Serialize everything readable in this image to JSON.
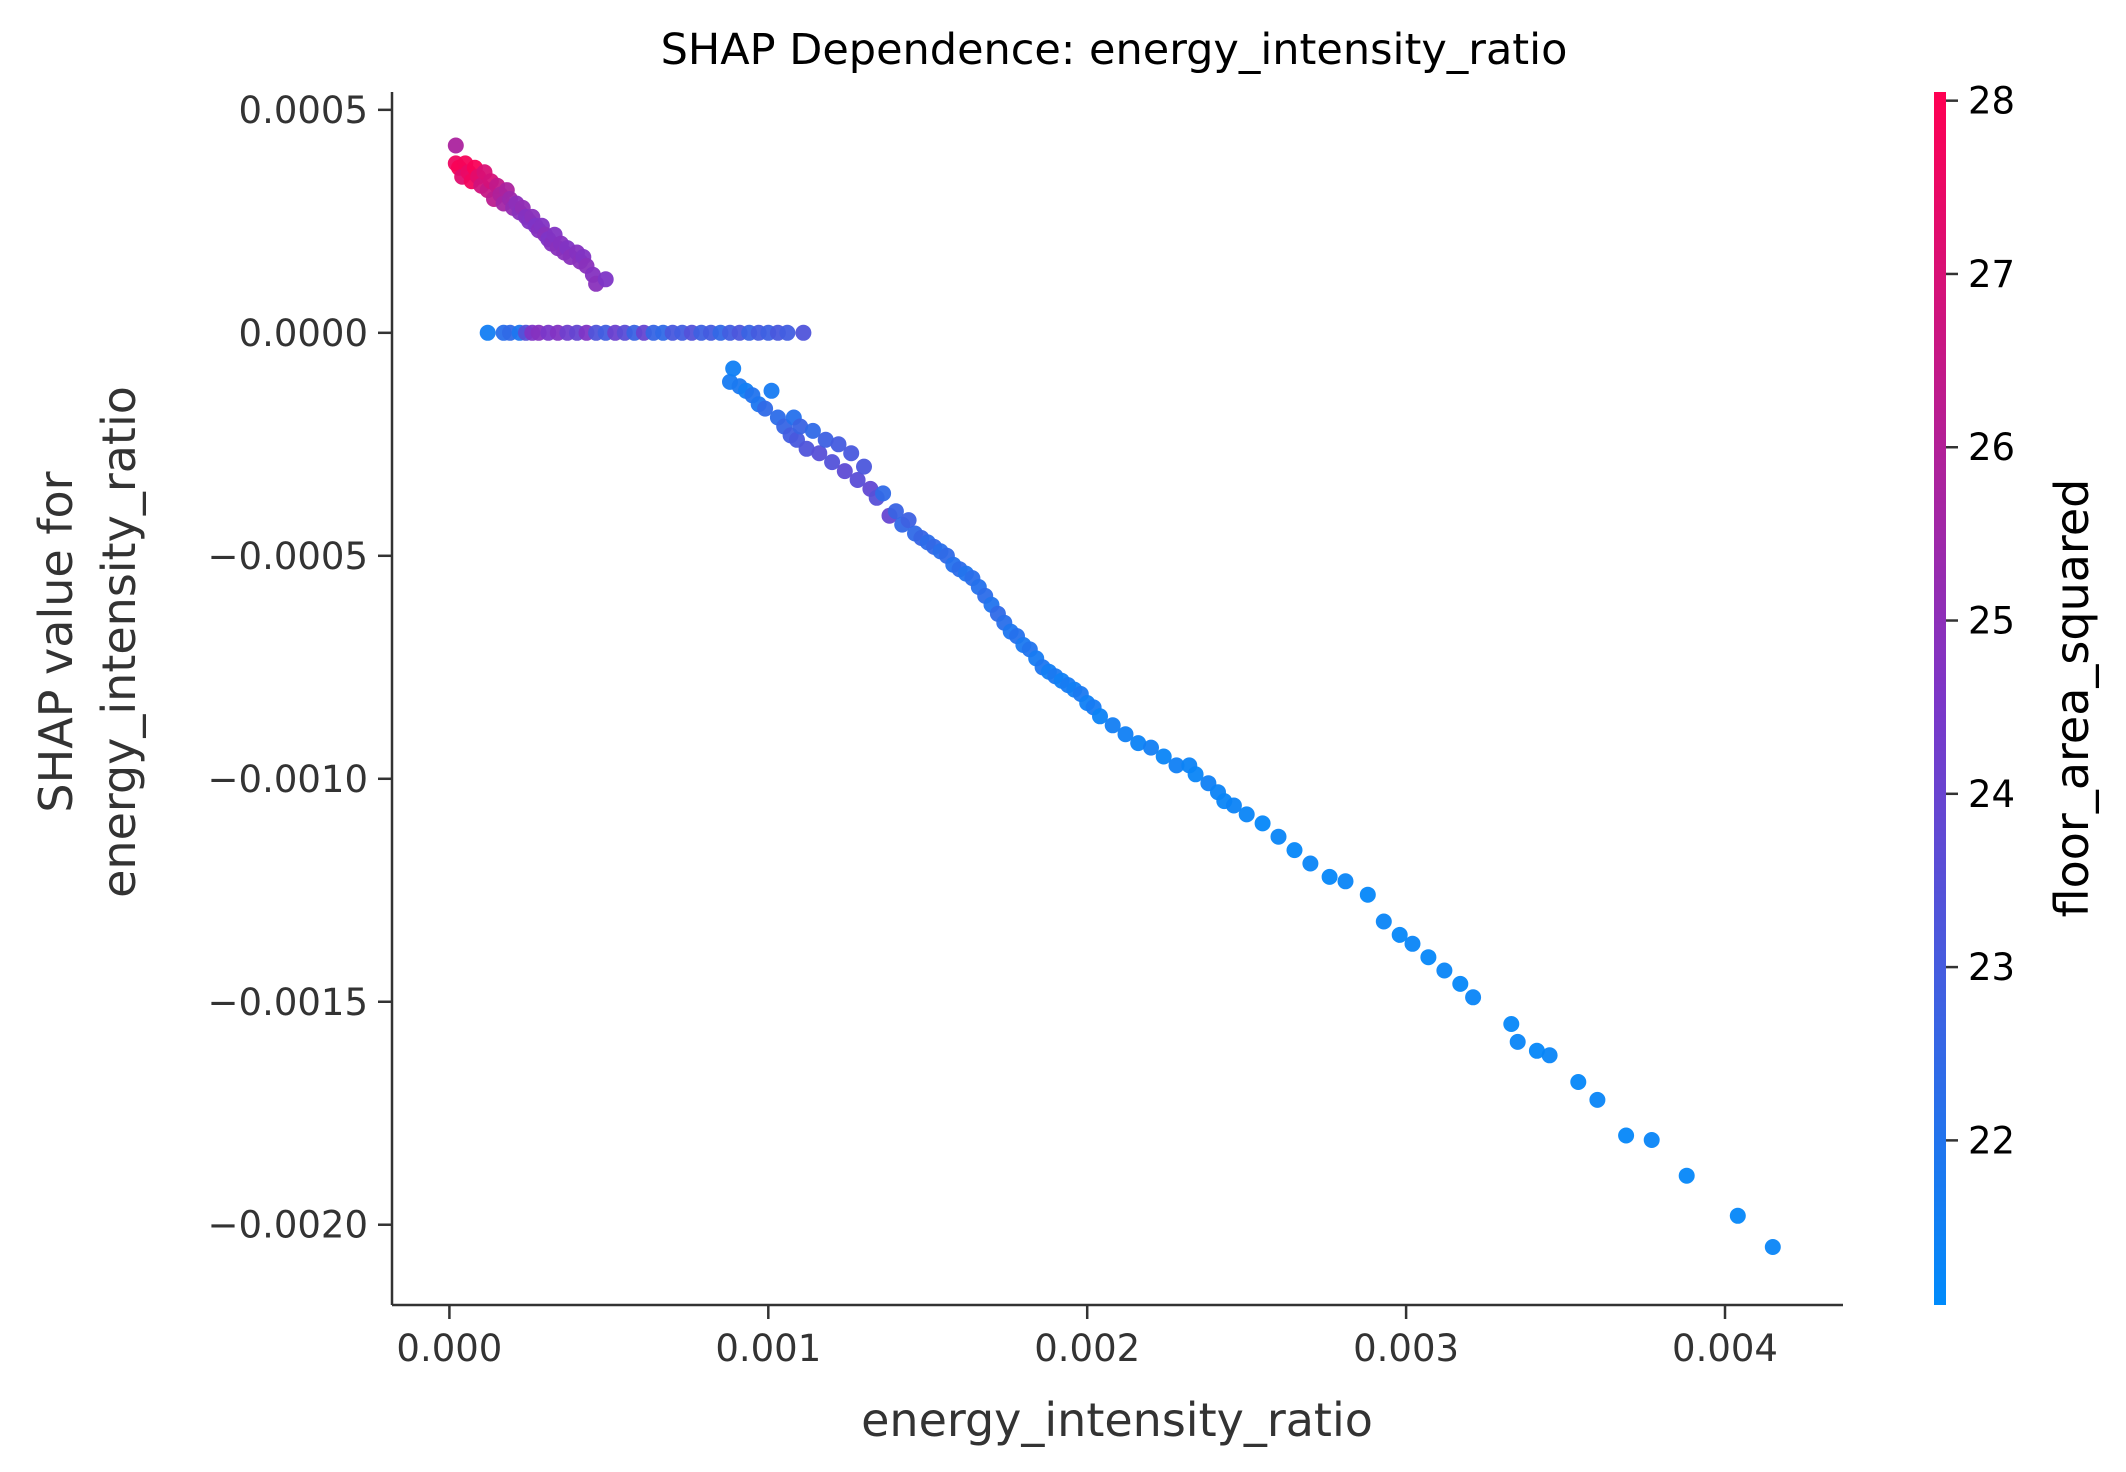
{
  "chart_data": {
    "type": "scatter",
    "title": "SHAP Dependence: energy_intensity_ratio",
    "xlabel": "energy_intensity_ratio",
    "ylabel_lines": [
      "SHAP value for",
      "energy_intensity_ratio"
    ],
    "xlim": [
      -0.00018,
      0.00437
    ],
    "ylim": [
      -0.00218,
      0.00054
    ],
    "x_ticks": [
      {
        "value": 0.0,
        "label": "0.000"
      },
      {
        "value": 0.001,
        "label": "0.001"
      },
      {
        "value": 0.002,
        "label": "0.002"
      },
      {
        "value": 0.003,
        "label": "0.003"
      },
      {
        "value": 0.004,
        "label": "0.004"
      }
    ],
    "y_ticks": [
      {
        "value": 0.0005,
        "label": "0.0005"
      },
      {
        "value": 0.0,
        "label": "0.0000"
      },
      {
        "value": -0.0005,
        "label": "−0.0005"
      },
      {
        "value": -0.001,
        "label": "−0.0010"
      },
      {
        "value": -0.0015,
        "label": "−0.0015"
      },
      {
        "value": -0.002,
        "label": "−0.0020"
      }
    ],
    "colorbar": {
      "label": "floor_area_squared",
      "range": [
        21.05,
        28.05
      ],
      "low_color": "#008bfb",
      "mid_color": "#7c36c8",
      "high_color": "#ff0052",
      "ticks": [
        {
          "value": 22,
          "label": "22"
        },
        {
          "value": 23,
          "label": "23"
        },
        {
          "value": 24,
          "label": "24"
        },
        {
          "value": 25,
          "label": "25"
        },
        {
          "value": 26,
          "label": "26"
        },
        {
          "value": 27,
          "label": "27"
        },
        {
          "value": 28,
          "label": "28"
        }
      ]
    },
    "points": [
      [
        2e-05,
        0.00042,
        25.8
      ],
      [
        2e-05,
        0.00038,
        27.6
      ],
      [
        3e-05,
        0.00037,
        27.9
      ],
      [
        4e-05,
        0.00035,
        27.2
      ],
      [
        5e-05,
        0.00038,
        27.8
      ],
      [
        6e-05,
        0.00036,
        27.5
      ],
      [
        7e-05,
        0.00034,
        27.7
      ],
      [
        8e-05,
        0.00037,
        27.9
      ],
      [
        9e-05,
        0.00035,
        27.3
      ],
      [
        0.0001,
        0.00033,
        26.8
      ],
      [
        0.00011,
        0.00036,
        27.0
      ],
      [
        0.00012,
        0.00032,
        26.5
      ],
      [
        0.00013,
        0.00034,
        26.9
      ],
      [
        0.00014,
        0.0003,
        26.2
      ],
      [
        0.00015,
        0.00033,
        26.4
      ],
      [
        0.00016,
        0.00031,
        25.9
      ],
      [
        0.00017,
        0.00029,
        25.6
      ],
      [
        0.00018,
        0.00032,
        25.8
      ],
      [
        0.00019,
        0.0003,
        25.4
      ],
      [
        0.0002,
        0.00028,
        25.2
      ],
      [
        0.00021,
        0.00029,
        25.0
      ],
      [
        0.00022,
        0.00027,
        24.9
      ],
      [
        0.00023,
        0.00028,
        25.1
      ],
      [
        0.00024,
        0.00026,
        24.8
      ],
      [
        0.00025,
        0.00025,
        24.7
      ],
      [
        0.00026,
        0.00026,
        24.9
      ],
      [
        0.00027,
        0.00024,
        24.6
      ],
      [
        0.00028,
        0.00023,
        24.8
      ],
      [
        0.00029,
        0.00024,
        24.7
      ],
      [
        0.0003,
        0.00022,
        24.9
      ],
      [
        0.00031,
        0.00021,
        24.6
      ],
      [
        0.00032,
        0.0002,
        24.8
      ],
      [
        0.00033,
        0.00022,
        24.7
      ],
      [
        0.00034,
        0.00019,
        24.9
      ],
      [
        0.00035,
        0.0002,
        24.8
      ],
      [
        0.00036,
        0.00018,
        24.9
      ],
      [
        0.00037,
        0.00019,
        24.7
      ],
      [
        0.00038,
        0.00017,
        24.9
      ],
      [
        0.0004,
        0.00018,
        24.8
      ],
      [
        0.00041,
        0.00016,
        24.9
      ],
      [
        0.00042,
        0.00017,
        24.7
      ],
      [
        0.00043,
        0.00015,
        24.9
      ],
      [
        0.00045,
        0.00013,
        24.8
      ],
      [
        0.00046,
        0.00011,
        24.9
      ],
      [
        0.00049,
        0.00012,
        24.6
      ],
      [
        0.00012,
        0.0,
        21.6
      ],
      [
        0.00017,
        0.0,
        22.2
      ],
      [
        0.00019,
        0.0,
        22.4
      ],
      [
        0.00022,
        0.0,
        21.9
      ],
      [
        0.00024,
        0.0,
        23.5
      ],
      [
        0.00026,
        0.0,
        24.6
      ],
      [
        0.00028,
        0.0,
        24.8
      ],
      [
        0.00031,
        0.0,
        24.5
      ],
      [
        0.00034,
        0.0,
        24.7
      ],
      [
        0.00037,
        0.0,
        24.2
      ],
      [
        0.0004,
        0.0,
        23.9
      ],
      [
        0.00043,
        0.0,
        24.6
      ],
      [
        0.00046,
        0.0,
        23.3
      ],
      [
        0.00049,
        0.0,
        22.9
      ],
      [
        0.00052,
        0.0,
        24.1
      ],
      [
        0.00055,
        0.0,
        23.6
      ],
      [
        0.00058,
        0.0,
        22.7
      ],
      [
        0.00061,
        0.0,
        23.9
      ],
      [
        0.00064,
        0.0,
        22.6
      ],
      [
        0.00067,
        0.0,
        22.4
      ],
      [
        0.0007,
        0.0,
        23.1
      ],
      [
        0.00073,
        0.0,
        22.9
      ],
      [
        0.00076,
        0.0,
        23.4
      ],
      [
        0.00079,
        0.0,
        22.8
      ],
      [
        0.00082,
        0.0,
        23.0
      ],
      [
        0.00085,
        0.0,
        22.5
      ],
      [
        0.00088,
        0.0,
        22.9
      ],
      [
        0.00091,
        0.0,
        23.2
      ],
      [
        0.00094,
        0.0,
        22.7
      ],
      [
        0.00097,
        0.0,
        23.0
      ],
      [
        0.001,
        0.0,
        22.8
      ],
      [
        0.00103,
        0.0,
        23.1
      ],
      [
        0.00106,
        0.0,
        22.9
      ],
      [
        0.00111,
        0.0,
        23.3
      ],
      [
        0.00088,
        -0.00011,
        21.7
      ],
      [
        0.00089,
        -8e-05,
        21.5
      ],
      [
        0.00091,
        -0.00012,
        21.8
      ],
      [
        0.00093,
        -0.00013,
        21.6
      ],
      [
        0.00095,
        -0.00014,
        22.0
      ],
      [
        0.00097,
        -0.00016,
        21.9
      ],
      [
        0.00099,
        -0.00017,
        22.4
      ],
      [
        0.00101,
        -0.00013,
        21.7
      ],
      [
        0.00103,
        -0.00019,
        22.3
      ],
      [
        0.00105,
        -0.00021,
        22.6
      ],
      [
        0.00107,
        -0.00023,
        22.9
      ],
      [
        0.00108,
        -0.00019,
        22.1
      ],
      [
        0.00109,
        -0.00024,
        23.1
      ],
      [
        0.0011,
        -0.00021,
        22.7
      ],
      [
        0.00112,
        -0.00026,
        23.3
      ],
      [
        0.00114,
        -0.00022,
        22.4
      ],
      [
        0.00116,
        -0.00027,
        23.5
      ],
      [
        0.00118,
        -0.00024,
        22.8
      ],
      [
        0.0012,
        -0.00029,
        23.4
      ],
      [
        0.00122,
        -0.00025,
        23.0
      ],
      [
        0.00124,
        -0.00031,
        23.7
      ],
      [
        0.00126,
        -0.00027,
        23.1
      ],
      [
        0.00128,
        -0.00033,
        23.6
      ],
      [
        0.0013,
        -0.0003,
        23.2
      ],
      [
        0.00132,
        -0.00035,
        23.8
      ],
      [
        0.00134,
        -0.00037,
        23.5
      ],
      [
        0.00136,
        -0.00036,
        22.4
      ],
      [
        0.00138,
        -0.00041,
        23.9
      ],
      [
        0.0014,
        -0.0004,
        22.7
      ],
      [
        0.00142,
        -0.00043,
        22.5
      ],
      [
        0.00144,
        -0.00042,
        22.8
      ],
      [
        0.00146,
        -0.00045,
        22.4
      ],
      [
        0.00148,
        -0.00046,
        22.6
      ],
      [
        0.0015,
        -0.00047,
        22.3
      ],
      [
        0.00152,
        -0.00048,
        22.5
      ],
      [
        0.00154,
        -0.00049,
        22.2
      ],
      [
        0.00156,
        -0.0005,
        22.4
      ],
      [
        0.00158,
        -0.00052,
        22.1
      ],
      [
        0.0016,
        -0.00053,
        22.3
      ],
      [
        0.00162,
        -0.00054,
        22.0
      ],
      [
        0.00164,
        -0.00055,
        22.2
      ],
      [
        0.00166,
        -0.00057,
        22.1
      ],
      [
        0.00168,
        -0.00059,
        22.3
      ],
      [
        0.0017,
        -0.00061,
        22.0
      ],
      [
        0.00172,
        -0.00063,
        22.4
      ],
      [
        0.00174,
        -0.00065,
        22.2
      ],
      [
        0.00176,
        -0.00067,
        21.9
      ],
      [
        0.00178,
        -0.00068,
        22.1
      ],
      [
        0.0018,
        -0.0007,
        21.8
      ],
      [
        0.00182,
        -0.00071,
        22.0
      ],
      [
        0.00184,
        -0.00073,
        21.7
      ],
      [
        0.00186,
        -0.00075,
        21.9
      ],
      [
        0.00188,
        -0.00076,
        21.6
      ],
      [
        0.0019,
        -0.00077,
        21.8
      ],
      [
        0.00192,
        -0.00078,
        21.5
      ],
      [
        0.00194,
        -0.00079,
        21.7
      ],
      [
        0.00196,
        -0.0008,
        21.6
      ],
      [
        0.00198,
        -0.00081,
        21.8
      ],
      [
        0.002,
        -0.00083,
        21.5
      ],
      [
        0.00202,
        -0.00084,
        21.7
      ],
      [
        0.00204,
        -0.00086,
        21.4
      ],
      [
        0.00208,
        -0.00088,
        21.6
      ],
      [
        0.00212,
        -0.0009,
        21.5
      ],
      [
        0.00216,
        -0.00092,
        21.4
      ],
      [
        0.0022,
        -0.00093,
        21.6
      ],
      [
        0.00224,
        -0.00095,
        21.3
      ],
      [
        0.00228,
        -0.00097,
        21.5
      ],
      [
        0.00232,
        -0.00097,
        21.4
      ],
      [
        0.00234,
        -0.00099,
        21.3
      ],
      [
        0.00238,
        -0.00101,
        21.5
      ],
      [
        0.00241,
        -0.00103,
        21.4
      ],
      [
        0.00243,
        -0.00105,
        21.3
      ],
      [
        0.00246,
        -0.00106,
        21.4
      ],
      [
        0.0025,
        -0.00108,
        21.3
      ],
      [
        0.00255,
        -0.0011,
        21.2
      ],
      [
        0.0026,
        -0.00113,
        21.3
      ],
      [
        0.00265,
        -0.00116,
        21.2
      ],
      [
        0.0027,
        -0.00119,
        21.3
      ],
      [
        0.00276,
        -0.00122,
        21.2
      ],
      [
        0.00281,
        -0.00123,
        21.3
      ],
      [
        0.00288,
        -0.00126,
        21.2
      ],
      [
        0.00293,
        -0.00132,
        21.3
      ],
      [
        0.00298,
        -0.00135,
        21.2
      ],
      [
        0.00302,
        -0.00137,
        21.3
      ],
      [
        0.00307,
        -0.0014,
        21.2
      ],
      [
        0.00312,
        -0.00143,
        21.3
      ],
      [
        0.00317,
        -0.00146,
        21.2
      ],
      [
        0.00321,
        -0.00149,
        21.3
      ],
      [
        0.00333,
        -0.00155,
        21.2
      ],
      [
        0.00335,
        -0.00159,
        21.3
      ],
      [
        0.00341,
        -0.00161,
        21.2
      ],
      [
        0.00345,
        -0.00162,
        21.3
      ],
      [
        0.00354,
        -0.00168,
        21.2
      ],
      [
        0.0036,
        -0.00172,
        21.3
      ],
      [
        0.00369,
        -0.0018,
        21.2
      ],
      [
        0.00377,
        -0.00181,
        21.3
      ],
      [
        0.00388,
        -0.00189,
        21.2
      ],
      [
        0.00404,
        -0.00198,
        21.2
      ],
      [
        0.00415,
        -0.00205,
        21.3
      ]
    ]
  }
}
